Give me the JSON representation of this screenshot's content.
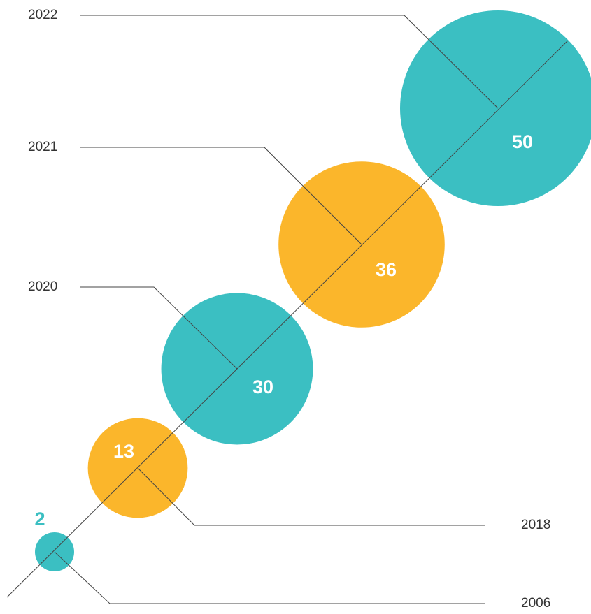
{
  "chart_data": {
    "type": "bubble",
    "categories": [
      "2006",
      "2018",
      "2020",
      "2021",
      "2022"
    ],
    "values": [
      2,
      13,
      30,
      36,
      50
    ],
    "colors": [
      "#3bbfc2",
      "#fbb62b",
      "#3bbfc2",
      "#fbb62b",
      "#3bbfc2"
    ]
  }
}
